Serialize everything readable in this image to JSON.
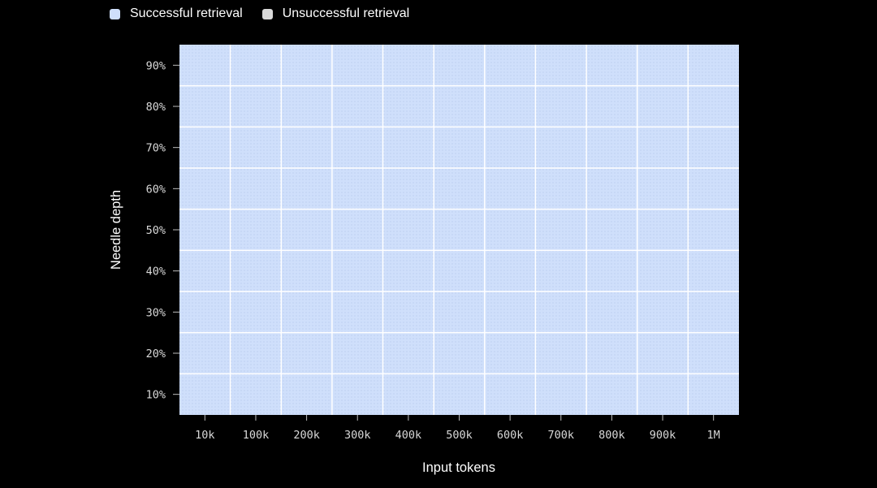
{
  "legend": [
    {
      "label": "Successful retrieval",
      "color": "#cfdffb"
    },
    {
      "label": "Unsuccessful retrieval",
      "color": "#d9d9d9"
    }
  ],
  "chart_data": {
    "type": "heatmap",
    "xlabel": "Input tokens",
    "ylabel": "Needle depth",
    "x_categories": [
      "10k",
      "100k",
      "200k",
      "300k",
      "400k",
      "500k",
      "600k",
      "700k",
      "800k",
      "900k",
      "1M"
    ],
    "y_categories": [
      "10%",
      "20%",
      "30%",
      "40%",
      "50%",
      "60%",
      "70%",
      "80%",
      "90%"
    ],
    "cells": [
      [
        "Successful retrieval",
        "Successful retrieval",
        "Successful retrieval",
        "Successful retrieval",
        "Successful retrieval",
        "Successful retrieval",
        "Successful retrieval",
        "Successful retrieval",
        "Successful retrieval",
        "Successful retrieval",
        "Successful retrieval"
      ],
      [
        "Successful retrieval",
        "Successful retrieval",
        "Successful retrieval",
        "Successful retrieval",
        "Successful retrieval",
        "Successful retrieval",
        "Successful retrieval",
        "Successful retrieval",
        "Successful retrieval",
        "Successful retrieval",
        "Successful retrieval"
      ],
      [
        "Successful retrieval",
        "Successful retrieval",
        "Successful retrieval",
        "Successful retrieval",
        "Successful retrieval",
        "Successful retrieval",
        "Successful retrieval",
        "Successful retrieval",
        "Successful retrieval",
        "Successful retrieval",
        "Successful retrieval"
      ],
      [
        "Successful retrieval",
        "Successful retrieval",
        "Successful retrieval",
        "Successful retrieval",
        "Successful retrieval",
        "Successful retrieval",
        "Successful retrieval",
        "Successful retrieval",
        "Successful retrieval",
        "Successful retrieval",
        "Successful retrieval"
      ],
      [
        "Successful retrieval",
        "Successful retrieval",
        "Successful retrieval",
        "Successful retrieval",
        "Successful retrieval",
        "Successful retrieval",
        "Successful retrieval",
        "Successful retrieval",
        "Successful retrieval",
        "Successful retrieval",
        "Successful retrieval"
      ],
      [
        "Successful retrieval",
        "Successful retrieval",
        "Successful retrieval",
        "Successful retrieval",
        "Successful retrieval",
        "Successful retrieval",
        "Successful retrieval",
        "Successful retrieval",
        "Successful retrieval",
        "Successful retrieval",
        "Successful retrieval"
      ],
      [
        "Successful retrieval",
        "Successful retrieval",
        "Successful retrieval",
        "Successful retrieval",
        "Successful retrieval",
        "Successful retrieval",
        "Successful retrieval",
        "Successful retrieval",
        "Successful retrieval",
        "Successful retrieval",
        "Successful retrieval"
      ],
      [
        "Successful retrieval",
        "Successful retrieval",
        "Successful retrieval",
        "Successful retrieval",
        "Successful retrieval",
        "Successful retrieval",
        "Successful retrieval",
        "Successful retrieval",
        "Successful retrieval",
        "Successful retrieval",
        "Successful retrieval"
      ],
      [
        "Successful retrieval",
        "Successful retrieval",
        "Successful retrieval",
        "Successful retrieval",
        "Successful retrieval",
        "Successful retrieval",
        "Successful retrieval",
        "Successful retrieval",
        "Successful retrieval",
        "Successful retrieval",
        "Successful retrieval"
      ]
    ]
  }
}
